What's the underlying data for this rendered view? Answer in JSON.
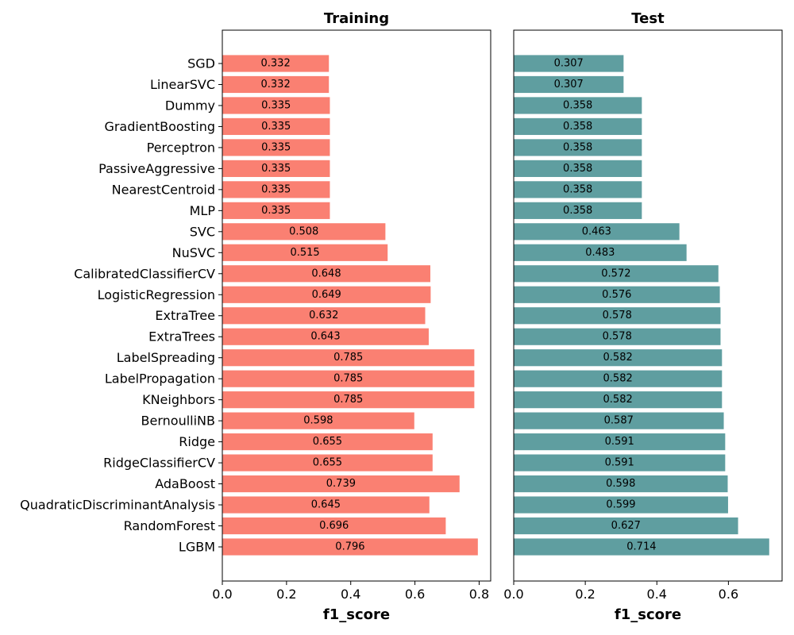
{
  "chart_data": {
    "type": "bar",
    "orientation": "horizontal",
    "categories": [
      "SGD",
      "LinearSVC",
      "Dummy",
      "GradientBoosting",
      "Perceptron",
      "PassiveAggressive",
      "NearestCentroid",
      "MLP",
      "SVC",
      "NuSVC",
      "CalibratedClassifierCV",
      "LogisticRegression",
      "ExtraTree",
      "ExtraTrees",
      "LabelSpreading",
      "LabelPropagation",
      "KNeighbors",
      "BernoulliNB",
      "Ridge",
      "RidgeClassifierCV",
      "AdaBoost",
      "QuadraticDiscriminantAnalysis",
      "RandomForest",
      "LGBM"
    ],
    "panels": [
      {
        "title": "Training",
        "xlabel": "f1_score",
        "color": "#fa8072",
        "xlim": [
          0,
          0.836
        ],
        "xticks": [
          0.0,
          0.2,
          0.4,
          0.6,
          0.8
        ],
        "xtick_labels": [
          "0.0",
          "0.2",
          "0.4",
          "0.6",
          "0.8"
        ],
        "values": [
          0.332,
          0.332,
          0.335,
          0.335,
          0.335,
          0.335,
          0.335,
          0.335,
          0.508,
          0.515,
          0.648,
          0.649,
          0.632,
          0.643,
          0.785,
          0.785,
          0.785,
          0.598,
          0.655,
          0.655,
          0.739,
          0.645,
          0.696,
          0.796
        ],
        "value_labels": [
          "0.332",
          "0.332",
          "0.335",
          "0.335",
          "0.335",
          "0.335",
          "0.335",
          "0.335",
          "0.508",
          "0.515",
          "0.648",
          "0.649",
          "0.632",
          "0.643",
          "0.785",
          "0.785",
          "0.785",
          "0.598",
          "0.655",
          "0.655",
          "0.739",
          "0.645",
          "0.696",
          "0.796"
        ]
      },
      {
        "title": "Test",
        "xlabel": "f1_score",
        "color": "#5f9ea0",
        "xlim": [
          0,
          0.75
        ],
        "xticks": [
          0.0,
          0.2,
          0.4,
          0.6
        ],
        "xtick_labels": [
          "0.0",
          "0.2",
          "0.4",
          "0.6"
        ],
        "values": [
          0.307,
          0.307,
          0.358,
          0.358,
          0.358,
          0.358,
          0.358,
          0.358,
          0.463,
          0.483,
          0.572,
          0.576,
          0.578,
          0.578,
          0.582,
          0.582,
          0.582,
          0.587,
          0.591,
          0.591,
          0.598,
          0.599,
          0.627,
          0.714
        ],
        "value_labels": [
          "0.307",
          "0.307",
          "0.358",
          "0.358",
          "0.358",
          "0.358",
          "0.358",
          "0.358",
          "0.463",
          "0.483",
          "0.572",
          "0.576",
          "0.578",
          "0.578",
          "0.582",
          "0.582",
          "0.582",
          "0.587",
          "0.591",
          "0.591",
          "0.598",
          "0.599",
          "0.627",
          "0.714"
        ]
      }
    ],
    "grid": false,
    "legend": "none"
  }
}
